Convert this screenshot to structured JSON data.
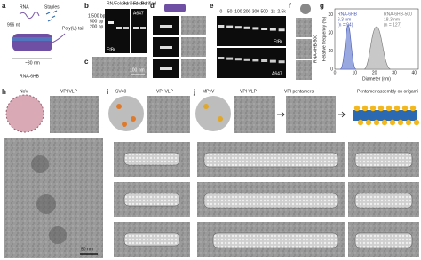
{
  "panels": {
    "a": {
      "label": "a",
      "rna": "RNA",
      "staples": "Staples",
      "length": "996 nt",
      "tail": "Poly(U) tail",
      "size": "~30 nm",
      "name": "RNA-6HB"
    },
    "b": {
      "label": "b",
      "markers": [
        "1,500 bp",
        "500 bp",
        "200 bp"
      ],
      "lanes": [
        "RNA",
        "Folded",
        "Purified",
        "Folded",
        "Purified"
      ],
      "stains": [
        "EtBr",
        "A647"
      ]
    },
    "c": {
      "label": "c",
      "scale": "100 nm"
    },
    "d": {
      "label": "d"
    },
    "e": {
      "label": "e",
      "lanes": [
        "0",
        "50",
        "100",
        "200",
        "300",
        "500",
        "1k",
        "2.5k"
      ],
      "stains": [
        "EtBr",
        "A647"
      ]
    },
    "f": {
      "label": "f",
      "name": "RNA-6HB-500"
    },
    "g": {
      "label": "g",
      "y_label": "Relative frequency (%)",
      "x_label": "Diameter (nm)",
      "yticks": [
        "0",
        "10",
        "20",
        "30"
      ],
      "xticks": [
        "0",
        "10",
        "20",
        "30",
        "40"
      ],
      "legend": [
        {
          "name": "RNA-6HB",
          "value": "6.3 nm",
          "n": "(n = 94)"
        },
        {
          "name": "RNA-6HB-500",
          "value": "18.3 nm",
          "n": "(n = 127)"
        }
      ]
    },
    "h": {
      "label": "h",
      "titles": [
        "NoV",
        "VPI VLP"
      ],
      "scale": "50 nm"
    },
    "i": {
      "label": "i",
      "titles": [
        "SV40",
        "VPI VLP"
      ]
    },
    "j": {
      "label": "j",
      "titles": [
        "MPyV",
        "VPI VLP",
        "VPI pentamers",
        "Pentamer assembly on origami"
      ]
    }
  }
}
